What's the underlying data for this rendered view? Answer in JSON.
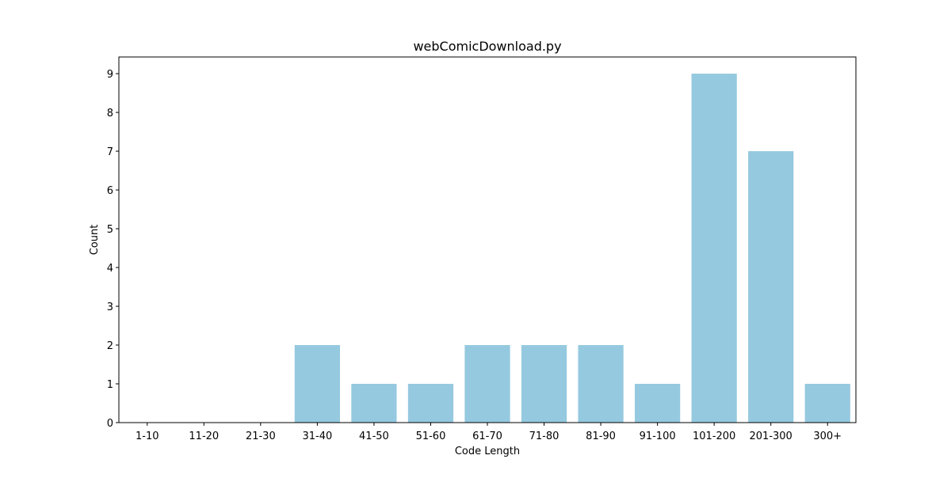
{
  "chart_data": {
    "type": "bar",
    "title": "webComicDownload.py",
    "xlabel": "Code Length",
    "ylabel": "Count",
    "categories": [
      "1-10",
      "11-20",
      "21-30",
      "31-40",
      "41-50",
      "51-60",
      "61-70",
      "71-80",
      "81-90",
      "91-100",
      "101-200",
      "201-300",
      "300+"
    ],
    "values": [
      0,
      0,
      0,
      2,
      1,
      1,
      2,
      2,
      2,
      1,
      9,
      7,
      1
    ],
    "ylim": [
      0,
      9.43
    ],
    "yticks": [
      0,
      1,
      2,
      3,
      4,
      5,
      6,
      7,
      8,
      9
    ],
    "grid": false,
    "bar_color": "#95c9df"
  }
}
